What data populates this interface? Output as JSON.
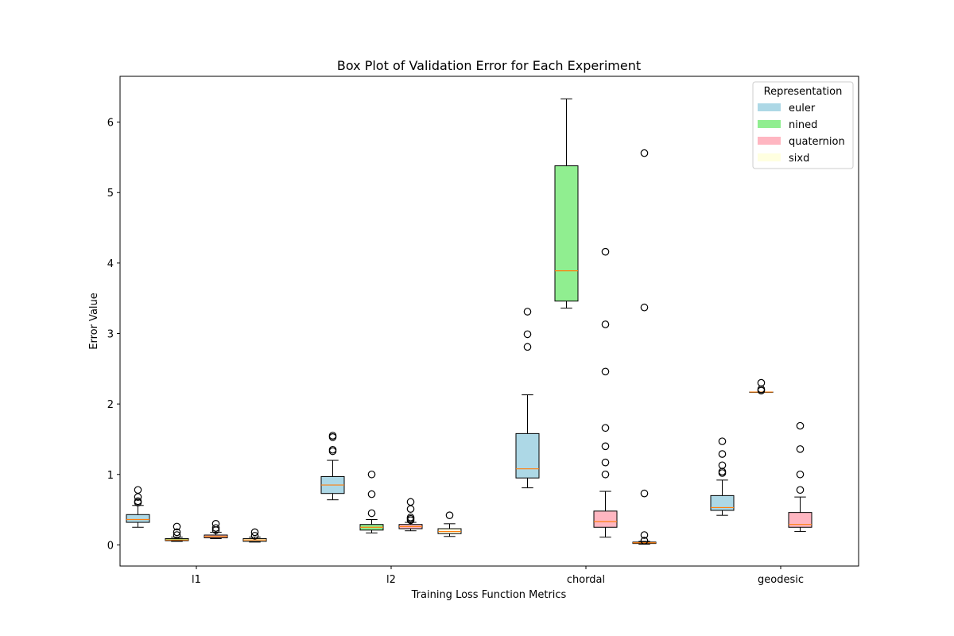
{
  "chart_data": {
    "type": "box",
    "title": "Box Plot of Validation Error for Each Experiment",
    "xlabel": "Training Loss Function Metrics",
    "ylabel": "Error Value",
    "ylim": [
      -0.3,
      6.65
    ],
    "y_ticks": [
      0,
      1,
      2,
      3,
      4,
      5,
      6
    ],
    "categories": [
      "l1",
      "l2",
      "chordal",
      "geodesic"
    ],
    "legend": {
      "title": "Representation",
      "placement": "top-right",
      "entries": [
        {
          "name": "euler",
          "color": "#add8e6"
        },
        {
          "name": "nined",
          "color": "#90ee90"
        },
        {
          "name": "quaternion",
          "color": "#ffb6c1"
        },
        {
          "name": "sixd",
          "color": "#ffffe0"
        }
      ]
    },
    "median_color": "#ff7f0e",
    "boxes": [
      {
        "category": "l1",
        "series": "euler",
        "whisker_low": 0.25,
        "q1": 0.32,
        "median": 0.36,
        "q3": 0.43,
        "whisker_high": 0.56,
        "fliers": [
          0.6,
          0.62,
          0.68,
          0.78
        ]
      },
      {
        "category": "l1",
        "series": "nined",
        "whisker_low": 0.05,
        "q1": 0.06,
        "median": 0.07,
        "q3": 0.09,
        "whisker_high": 0.11,
        "fliers": [
          0.14,
          0.18,
          0.26
        ]
      },
      {
        "category": "l1",
        "series": "quaternion",
        "whisker_low": 0.09,
        "q1": 0.1,
        "median": 0.12,
        "q3": 0.14,
        "whisker_high": 0.18,
        "fliers": [
          0.21,
          0.24,
          0.3
        ]
      },
      {
        "category": "l1",
        "series": "sixd",
        "whisker_low": 0.04,
        "q1": 0.05,
        "median": 0.07,
        "q3": 0.09,
        "whisker_high": 0.11,
        "fliers": [
          0.13,
          0.18
        ]
      },
      {
        "category": "l2",
        "series": "euler",
        "whisker_low": 0.64,
        "q1": 0.73,
        "median": 0.85,
        "q3": 0.97,
        "whisker_high": 1.2,
        "fliers": [
          1.33,
          1.35,
          1.53,
          1.55
        ]
      },
      {
        "category": "l2",
        "series": "nined",
        "whisker_low": 0.17,
        "q1": 0.21,
        "median": 0.25,
        "q3": 0.29,
        "whisker_high": 0.36,
        "fliers": [
          0.45,
          0.72,
          1.0
        ]
      },
      {
        "category": "l2",
        "series": "quaternion",
        "whisker_low": 0.2,
        "q1": 0.23,
        "median": 0.26,
        "q3": 0.29,
        "whisker_high": 0.32,
        "fliers": [
          0.35,
          0.37,
          0.39,
          0.51,
          0.61
        ]
      },
      {
        "category": "l2",
        "series": "sixd",
        "whisker_low": 0.12,
        "q1": 0.16,
        "median": 0.19,
        "q3": 0.23,
        "whisker_high": 0.3,
        "fliers": [
          0.42
        ]
      },
      {
        "category": "chordal",
        "series": "euler",
        "whisker_low": 0.81,
        "q1": 0.95,
        "median": 1.08,
        "q3": 1.58,
        "whisker_high": 2.13,
        "fliers": [
          2.81,
          2.99,
          3.31
        ]
      },
      {
        "category": "chordal",
        "series": "nined",
        "whisker_low": 3.36,
        "q1": 3.46,
        "median": 3.89,
        "q3": 5.38,
        "whisker_high": 6.33,
        "fliers": []
      },
      {
        "category": "chordal",
        "series": "quaternion",
        "whisker_low": 0.11,
        "q1": 0.25,
        "median": 0.33,
        "q3": 0.48,
        "whisker_high": 0.76,
        "fliers": [
          1.0,
          1.17,
          1.4,
          1.66,
          2.46,
          3.13,
          4.16
        ]
      },
      {
        "category": "chordal",
        "series": "sixd",
        "whisker_low": 0.01,
        "q1": 0.02,
        "median": 0.03,
        "q3": 0.04,
        "whisker_high": 0.05,
        "fliers": [
          0.06,
          0.14,
          0.73,
          3.37,
          5.56
        ]
      },
      {
        "category": "geodesic",
        "series": "euler",
        "whisker_low": 0.42,
        "q1": 0.49,
        "median": 0.53,
        "q3": 0.7,
        "whisker_high": 0.92,
        "fliers": [
          1.02,
          1.04,
          1.13,
          1.29,
          1.47
        ]
      },
      {
        "category": "geodesic",
        "series": "nined",
        "whisker_low": 2.17,
        "q1": 2.17,
        "median": 2.17,
        "q3": 2.17,
        "whisker_high": 2.17,
        "fliers": [
          2.19,
          2.21,
          2.3
        ]
      },
      {
        "category": "geodesic",
        "series": "quaternion",
        "whisker_low": 0.19,
        "q1": 0.25,
        "median": 0.29,
        "q3": 0.46,
        "whisker_high": 0.68,
        "fliers": [
          0.78,
          1.0,
          1.36,
          1.69
        ]
      }
    ]
  }
}
